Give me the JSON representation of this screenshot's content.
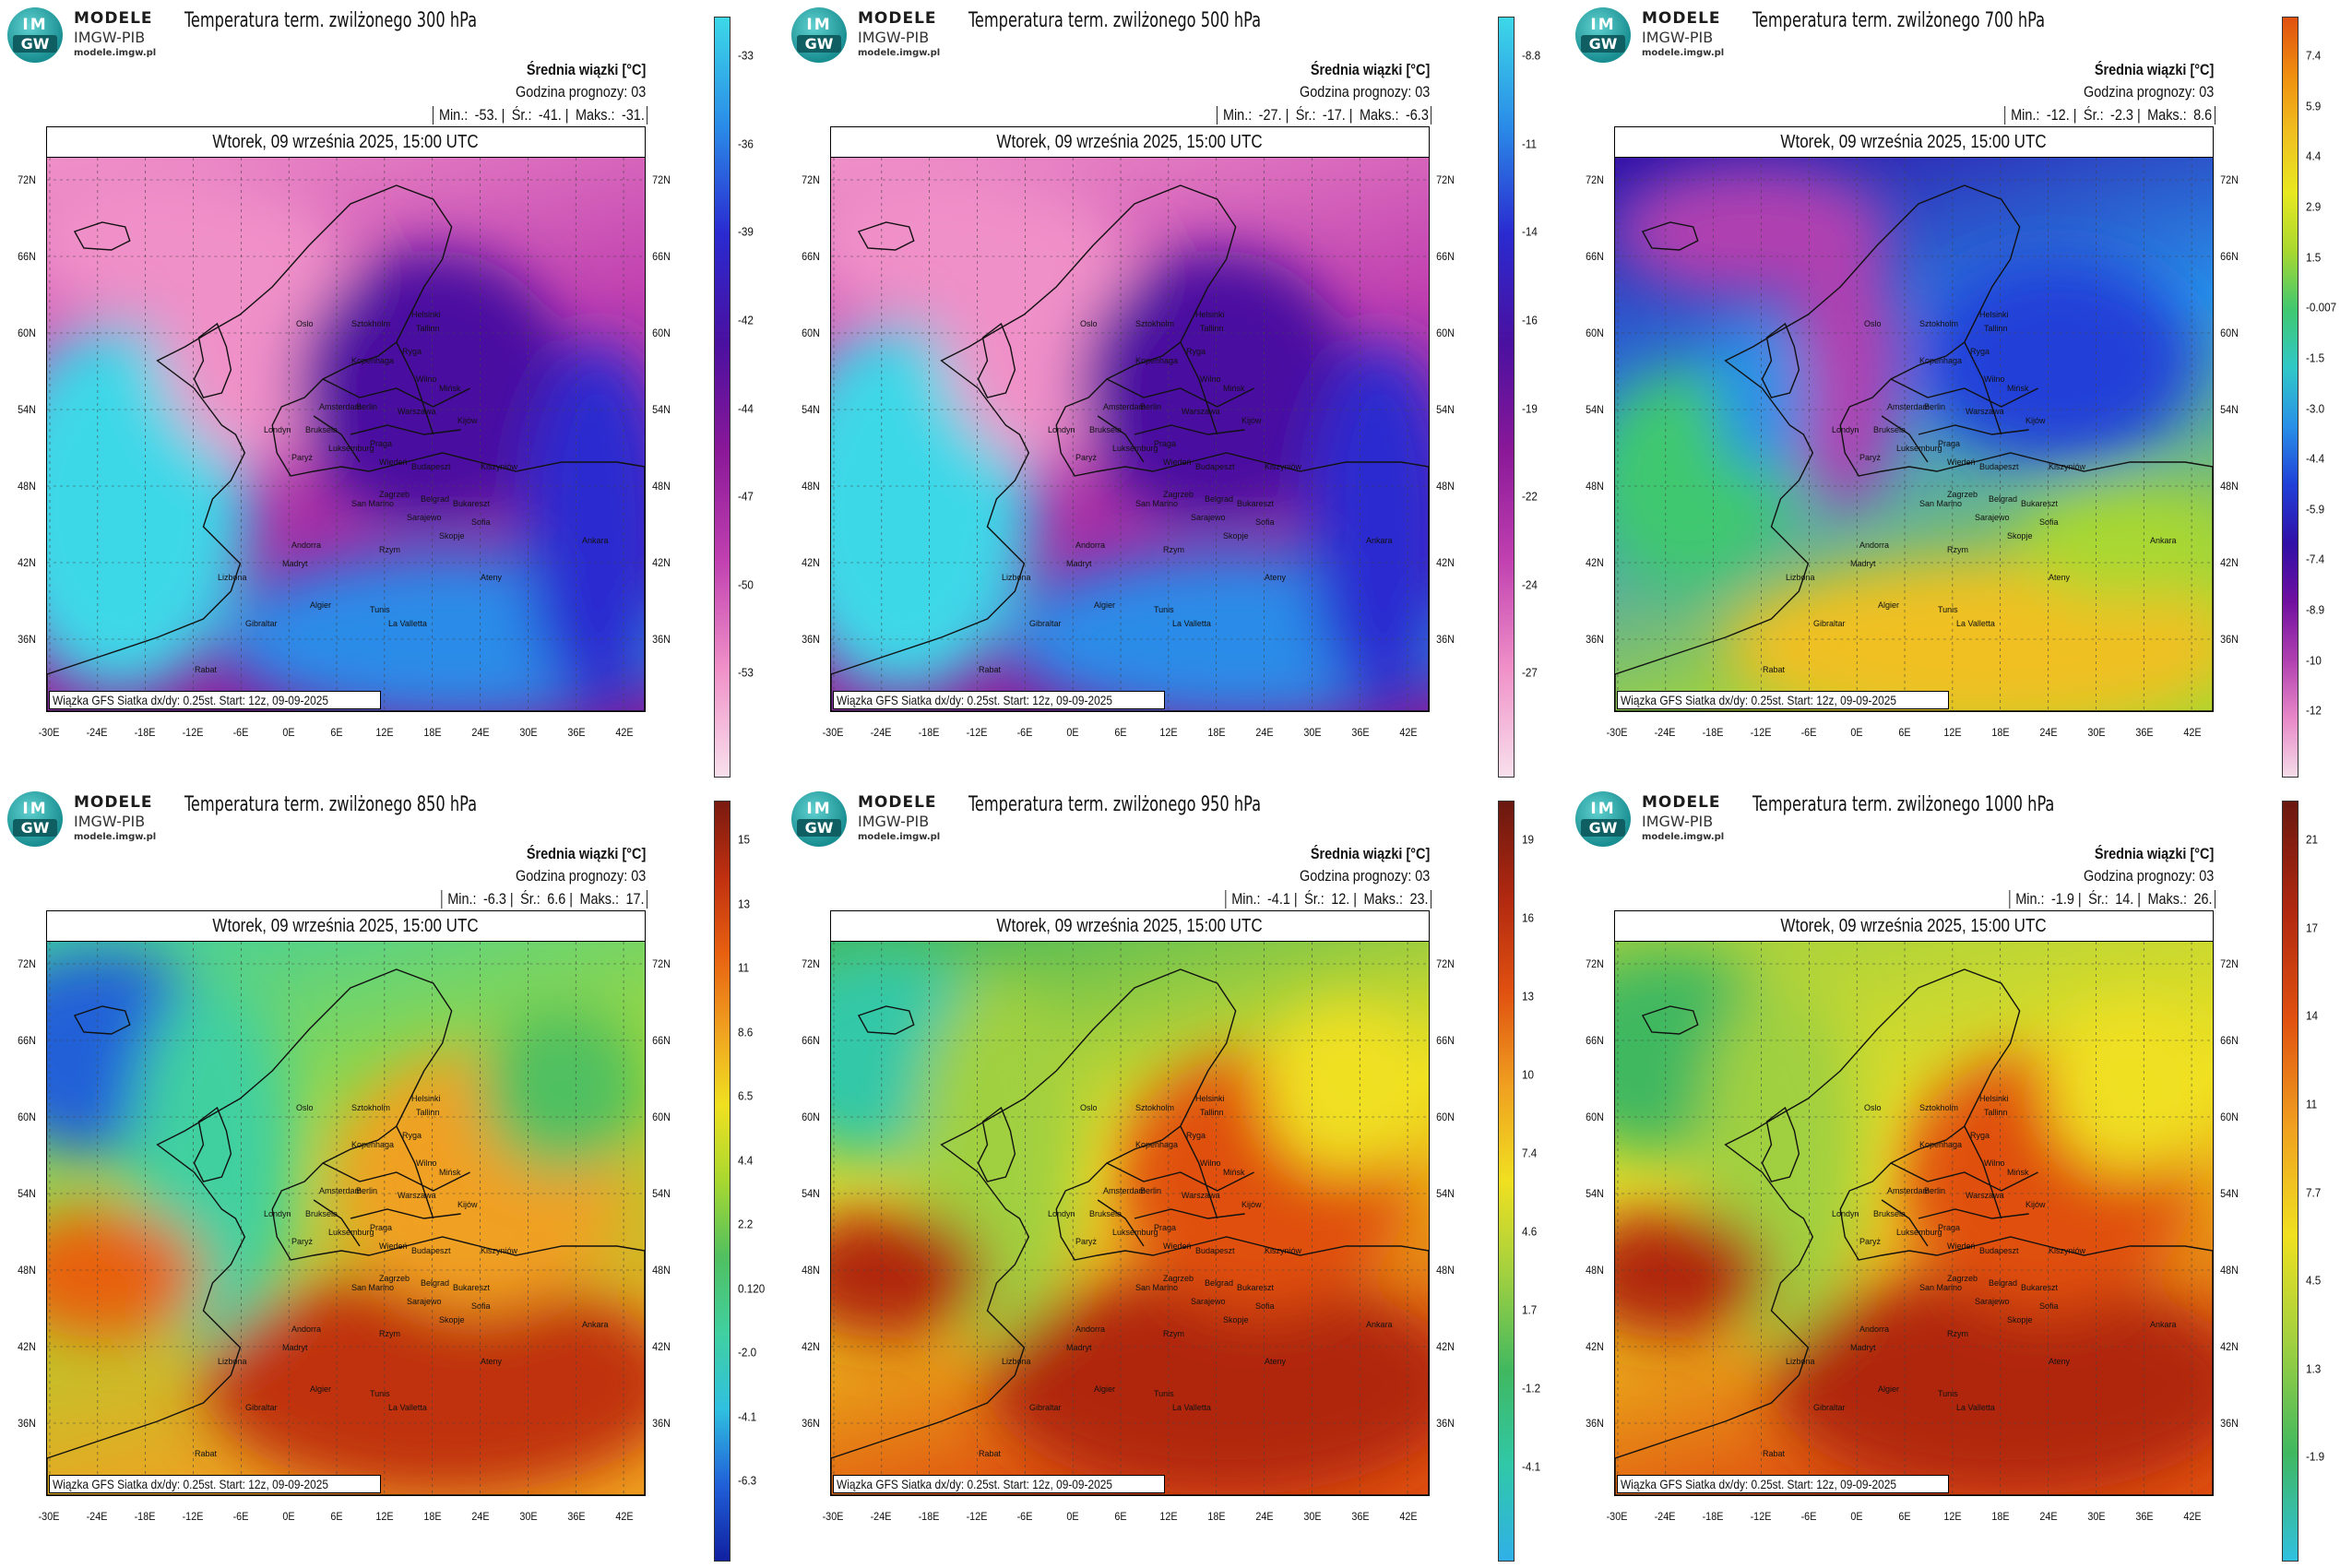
{
  "common": {
    "logo": {
      "badge_top": "IM",
      "badge_bottom": "GW",
      "name": "MODELE",
      "org": "IMGW-PIB",
      "url": "modele.imgw.pl"
    },
    "units_label": "Średnia wiązki [°C]",
    "forecast_label": "Godzina prognozy: 03",
    "stat_labels": {
      "min": "Min.:",
      "avg": "Śr.:",
      "max": "Maks.:"
    },
    "date": "Wtorek, 09 września 2025, 15:00 UTC",
    "footer": "Wiązka GFS Siatka dx/dy: 0.25st. Start: 12z, 09-09-2025",
    "lat_labels": [
      "72N",
      "66N",
      "60N",
      "54N",
      "48N",
      "42N",
      "36N"
    ],
    "lon_labels": [
      "-30E",
      "-24E",
      "-18E",
      "-12E",
      "-6E",
      "0E",
      "6E",
      "12E",
      "18E",
      "24E",
      "30E",
      "36E",
      "42E"
    ],
    "cities": [
      "Oslo",
      "Helsinki",
      "Sztokholm",
      "Tallinn",
      "Ryga",
      "Kopenhaga",
      "Wilno",
      "Mińsk",
      "Amsterdam",
      "Berlin",
      "Warszawa",
      "Kijów",
      "Londyn",
      "Bruksela",
      "Paryż",
      "Luksemburg",
      "Praga",
      "Wiedeń",
      "Budapeszt",
      "Kiszyniów",
      "Zagrzeb",
      "Belgrad",
      "Bukareszt",
      "Sofia",
      "San Marino",
      "Sarajewo",
      "Skopje",
      "Andorra",
      "Madryt",
      "Rzym",
      "Ankara",
      "Ateny",
      "Lizbona",
      "Gibraltar",
      "Algier",
      "Tunis",
      "La Valletta",
      "Rabat"
    ]
  },
  "panels": [
    {
      "title": "Temperatura term. zwilżonego 300 hPa",
      "stats": {
        "min": "-53.",
        "avg": "-41.",
        "max": "-31."
      },
      "scheme": "cold",
      "colorbar_labels": [
        "-33",
        "-36",
        "-39",
        "-42",
        "-44",
        "-47",
        "-50",
        "-53"
      ],
      "colors": [
        "#3dd8e8",
        "#2a8ce8",
        "#2a2ad0",
        "#4a10a0",
        "#8a1898",
        "#c040b0",
        "#f090c8",
        "#f8e0ec"
      ]
    },
    {
      "title": "Temperatura term. zwilżonego 500 hPa",
      "stats": {
        "min": "-27.",
        "avg": "-17.",
        "max": "-6.3"
      },
      "scheme": "cold",
      "colorbar_labels": [
        "-8.8",
        "-11",
        "-14",
        "-16",
        "-19",
        "-22",
        "-24",
        "-27"
      ],
      "colors": [
        "#3dd8e8",
        "#2a8ce8",
        "#2a2ad0",
        "#4a10a0",
        "#8a1898",
        "#c040b0",
        "#f090c8",
        "#f8e0ec"
      ]
    },
    {
      "title": "Temperatura term. zwilżonego 700 hPa",
      "stats": {
        "min": "-12.",
        "avg": "-2.3",
        "max": "8.6"
      },
      "scheme": "mixed",
      "colorbar_labels": [
        "7.4",
        "5.9",
        "4.4",
        "2.9",
        "1.5",
        "-0.007",
        "-1.5",
        "-3.0",
        "-4.4",
        "-5.9",
        "-7.4",
        "-8.9",
        "-10",
        "-12"
      ],
      "colors": [
        "#e05010",
        "#f09010",
        "#f0c020",
        "#e8e820",
        "#a8d830",
        "#40c870",
        "#30c8c8",
        "#2890e8",
        "#2040d8",
        "#3010a8",
        "#7010a0",
        "#b040b0",
        "#e888c8",
        "#f4dce8"
      ]
    },
    {
      "title": "Temperatura term. zwilżonego 850 hPa",
      "stats": {
        "min": "-6.3",
        "avg": "6.6",
        "max": "17."
      },
      "scheme": "warm",
      "colorbar_labels": [
        "15",
        "13",
        "11",
        "8.6",
        "6.5",
        "4.4",
        "2.2",
        "0.120",
        "-2.0",
        "-4.1",
        "-6.3"
      ],
      "colors": [
        "#7a1a10",
        "#c03010",
        "#e86010",
        "#f0a020",
        "#f0e020",
        "#a8d830",
        "#50c060",
        "#40d0a0",
        "#30c0e0",
        "#2060d8",
        "#1020a0"
      ]
    },
    {
      "title": "Temperatura term. zwilżonego 950 hPa",
      "stats": {
        "min": "-4.1",
        "avg": "12.",
        "max": "23."
      },
      "scheme": "warm",
      "colorbar_labels": [
        "19",
        "16",
        "13",
        "10",
        "7.4",
        "4.6",
        "1.7",
        "-1.2",
        "-4.1"
      ],
      "colors": [
        "#6a1810",
        "#b02810",
        "#e05010",
        "#f0a020",
        "#f0e020",
        "#a0d040",
        "#40b860",
        "#30c8a8",
        "#30b0e8"
      ]
    },
    {
      "title": "Temperatura term. zwilżonego 1000 hPa",
      "stats": {
        "min": "-1.9",
        "avg": "14.",
        "max": "26."
      },
      "scheme": "warm",
      "colorbar_labels": [
        "21",
        "17",
        "14",
        "11",
        "7.7",
        "4.5",
        "1.3",
        "-1.9"
      ],
      "colors": [
        "#6a1810",
        "#b02810",
        "#e05010",
        "#f0a020",
        "#f0e020",
        "#a0d040",
        "#40b860",
        "#30c0e0"
      ]
    }
  ]
}
